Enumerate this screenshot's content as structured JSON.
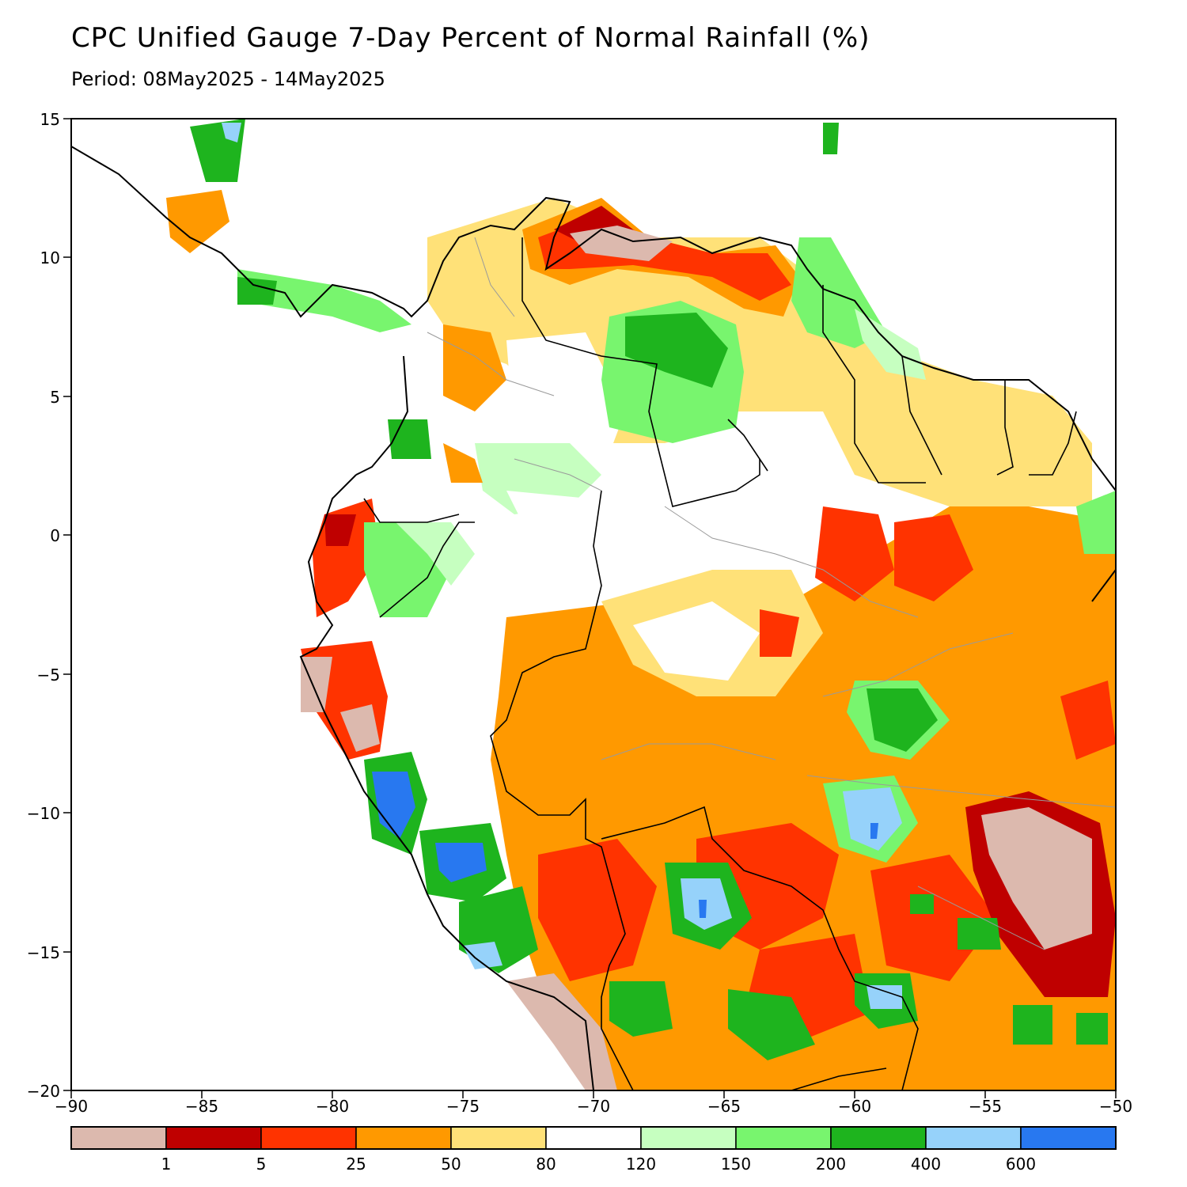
{
  "header": {
    "title": "CPC Unified Gauge 7-Day Percent of Normal Rainfall (%)",
    "period": "Period: 08May2025 - 14May2025"
  },
  "axes": {
    "lon_ticks": [
      "−90",
      "−85",
      "−80",
      "−75",
      "−70",
      "−65",
      "−60",
      "−55",
      "−50"
    ],
    "lat_ticks": [
      "15",
      "10",
      "5",
      "0",
      "−5",
      "−10",
      "−15",
      "−20"
    ],
    "lon_range": [
      -90,
      -50
    ],
    "lat_range": [
      -20,
      15
    ]
  },
  "legend": {
    "thresholds": [
      "1",
      "5",
      "25",
      "50",
      "80",
      "120",
      "150",
      "200",
      "400",
      "600"
    ],
    "colors": [
      "#dcb9ae",
      "#bf0000",
      "#ff3300",
      "#ff9900",
      "#ffe178",
      "#ffffff",
      "#c6ffc0",
      "#78f56e",
      "#1eb41e",
      "#96d2fa",
      "#2878f0"
    ]
  },
  "colors": {
    "coast": "#000000",
    "border": "#9a9a9a"
  }
}
